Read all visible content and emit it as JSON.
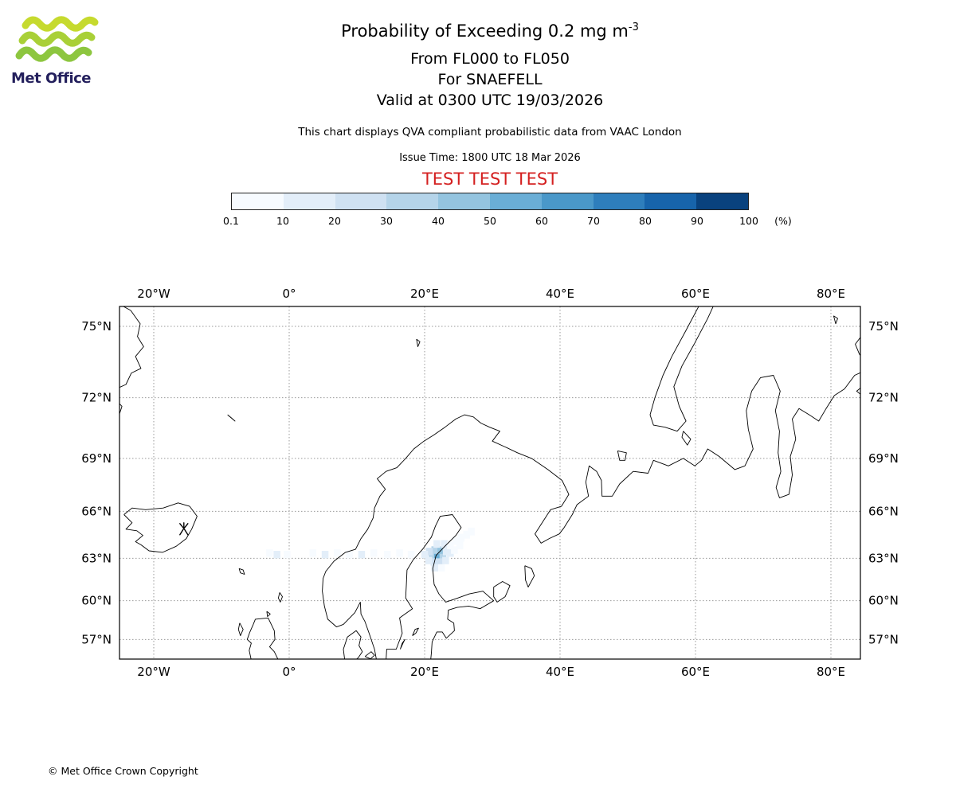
{
  "header": {
    "title_main": "Probability of Exceeding 0.2 mg m",
    "title_sup": "-3",
    "subtitle1": "From FL000 to FL050",
    "subtitle2": "For SNAEFELL",
    "subtitle3": "Valid at 0300 UTC 19/03/2026",
    "description": "This chart displays QVA compliant probabilistic data from VAAC London",
    "issue_time": "Issue Time: 1800 UTC 18 Mar 2026",
    "test_banner": "TEST TEST TEST",
    "test_color": "#d42020"
  },
  "logo": {
    "brand": "Met Office",
    "wave_colors": [
      "#c6da2e",
      "#a9d037",
      "#8dc63f"
    ],
    "text_color": "#231f5c"
  },
  "colorbar": {
    "colors": [
      "#f7fbff",
      "#e3eef9",
      "#cfe1f2",
      "#b5d4e9",
      "#94c4df",
      "#6aaed6",
      "#4a98c9",
      "#2e7ebc",
      "#1764ab",
      "#09427e"
    ],
    "tick_labels": [
      "0.1",
      "10",
      "20",
      "30",
      "40",
      "50",
      "60",
      "70",
      "80",
      "90",
      "100"
    ],
    "unit": "(%)"
  },
  "chart_data": {
    "type": "heatmap",
    "title": "Probability of Exceeding 0.2 mg m-3",
    "legend_values": [
      0.1,
      10,
      20,
      30,
      40,
      50,
      60,
      70,
      80,
      90,
      100
    ],
    "legend_unit": "(%)",
    "lon_ticks": [
      {
        "deg": -20,
        "label": "20°W"
      },
      {
        "deg": 0,
        "label": "0°"
      },
      {
        "deg": 20,
        "label": "20°E"
      },
      {
        "deg": 40,
        "label": "40°E"
      },
      {
        "deg": 60,
        "label": "60°E"
      },
      {
        "deg": 80,
        "label": "80°E"
      }
    ],
    "lat_ticks": [
      {
        "deg": 75,
        "label": "75°N"
      },
      {
        "deg": 72,
        "label": "72°N"
      },
      {
        "deg": 69,
        "label": "69°N"
      },
      {
        "deg": 66,
        "label": "66°N"
      },
      {
        "deg": 63,
        "label": "63°N"
      },
      {
        "deg": 60,
        "label": "60°N"
      },
      {
        "deg": 57,
        "label": "57°N"
      }
    ],
    "volcano": {
      "name": "SNAEFELL",
      "lon": -15.55,
      "lat": 64.8
    },
    "cell_size_deg": [
      1.0,
      0.5
    ],
    "ash_cells": [
      [
        20.6,
        62.9,
        4
      ],
      [
        21.4,
        62.9,
        6
      ],
      [
        22.2,
        62.9,
        4
      ],
      [
        21.0,
        63.3,
        4
      ],
      [
        21.9,
        63.3,
        5
      ],
      [
        20.2,
        63.2,
        3
      ],
      [
        22.7,
        63.2,
        2
      ],
      [
        20.9,
        62.5,
        3
      ],
      [
        21.8,
        62.5,
        3
      ],
      [
        22.6,
        62.6,
        2
      ],
      [
        20.1,
        62.6,
        2
      ],
      [
        21.3,
        63.7,
        2
      ],
      [
        22.4,
        63.7,
        2
      ],
      [
        19.5,
        63.0,
        2
      ],
      [
        23.3,
        63.1,
        2
      ],
      [
        21.0,
        62.1,
        2
      ],
      [
        22.0,
        62.1,
        1
      ],
      [
        23.3,
        63.6,
        1
      ],
      [
        24.1,
        63.9,
        1
      ],
      [
        24.9,
        64.1,
        1
      ],
      [
        25.7,
        64.3,
        1
      ],
      [
        23.9,
        63.3,
        1
      ],
      [
        24.7,
        63.6,
        1
      ],
      [
        26.4,
        64.5,
        1
      ],
      [
        17.5,
        63.0,
        1
      ],
      [
        15.8,
        63.1,
        1
      ],
      [
        14.0,
        63.0,
        1
      ],
      [
        12.0,
        63.1,
        1
      ],
      [
        10.2,
        63.0,
        2
      ],
      [
        8.4,
        63.0,
        1
      ],
      [
        6.6,
        63.1,
        1
      ],
      [
        4.8,
        63.0,
        2
      ],
      [
        3.0,
        63.1,
        1
      ],
      [
        -0.8,
        63.0,
        1
      ],
      [
        -2.3,
        63.0,
        2
      ],
      [
        -3.4,
        63.1,
        1
      ]
    ]
  },
  "footer": {
    "copyright": "© Met Office Crown Copyright"
  }
}
